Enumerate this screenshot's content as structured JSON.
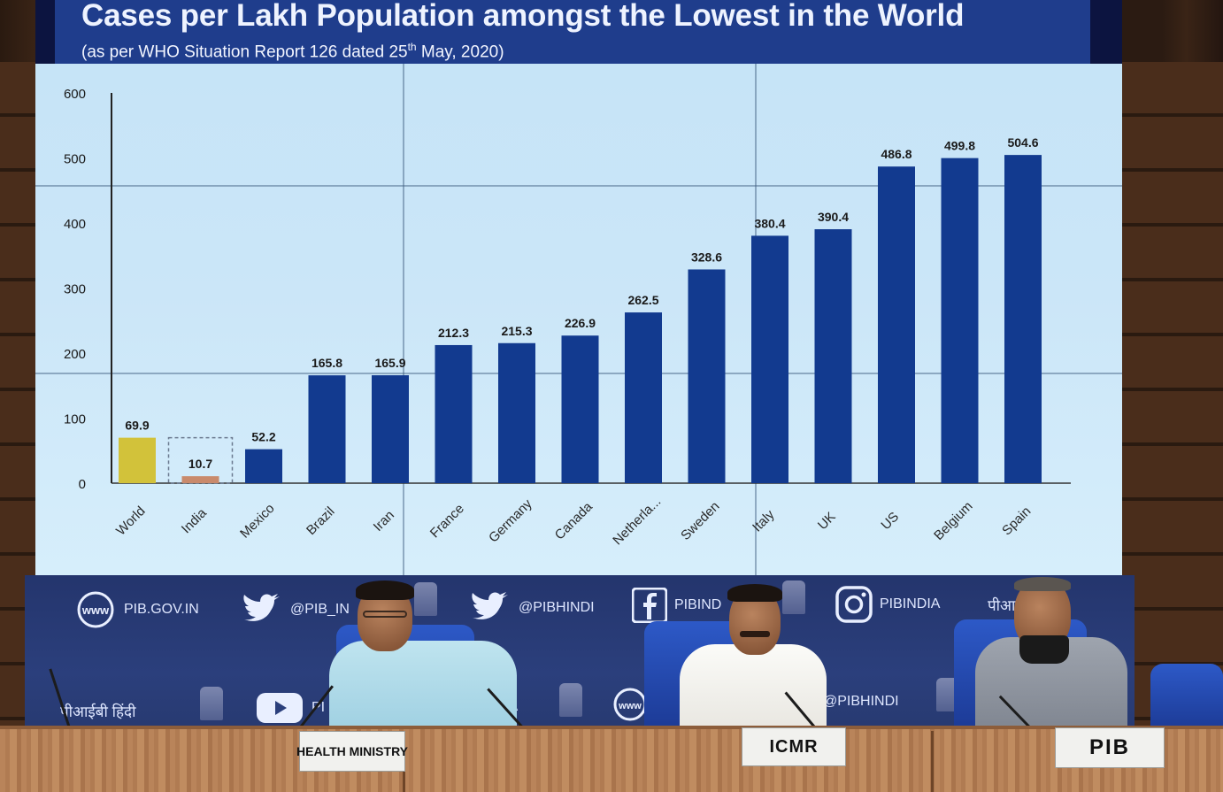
{
  "chart_data": {
    "type": "bar",
    "title": "Cases per Lakh Population amongst the Lowest in the World",
    "subtitle_prefix": "(as per WHO Situation Report 126 dated 25",
    "subtitle_sup": "th",
    "subtitle_suffix": " May, 2020)",
    "categories": [
      "World",
      "India",
      "Mexico",
      "Brazil",
      "Iran",
      "France",
      "Germany",
      "Canada",
      "Netherla...",
      "Sweden",
      "Italy",
      "UK",
      "US",
      "Belgium",
      "Spain"
    ],
    "values": [
      69.9,
      10.7,
      52.2,
      165.8,
      165.9,
      212.3,
      215.3,
      226.9,
      262.5,
      328.6,
      380.4,
      390.4,
      486.8,
      499.8,
      504.6
    ],
    "value_labels": [
      "69.9",
      "10.7",
      "52.2",
      "165.8",
      "165.9",
      "212.3",
      "215.3",
      "226.9",
      "262.5",
      "328.6",
      "380.4",
      "390.4",
      "486.8",
      "499.8",
      "504.6"
    ],
    "bar_colors": [
      "#d2c23a",
      "#c98a6c",
      "#123a8f",
      "#123a8f",
      "#123a8f",
      "#123a8f",
      "#123a8f",
      "#123a8f",
      "#123a8f",
      "#123a8f",
      "#123a8f",
      "#123a8f",
      "#123a8f",
      "#123a8f",
      "#123a8f"
    ],
    "yticks": [
      0,
      100,
      200,
      300,
      400,
      500,
      600
    ],
    "ylim": [
      0,
      600
    ],
    "xlabel": "",
    "ylabel": "",
    "grid": false,
    "highlight_box_category": "India"
  },
  "backdrop": {
    "website": "PIB.GOV.IN",
    "twitter_1": "@PIB_IN",
    "twitter_2": "@PIBHINDI",
    "facebook": "PIBIND",
    "instagram": "PIBINDIA",
    "hindi_1": "पीआईबी हिंदी",
    "hindi_2": "पीआईबी हिंदी",
    "youtube": "PI",
    "partial_a": "IA",
    "handle_lower": "@PIBHINDI",
    "www_label": "www",
    "colors": {
      "banner": "#2b3f7c",
      "text": "#dfe7ff"
    }
  },
  "nameplates": {
    "left": "HEALTH MINISTRY",
    "center": "ICMR",
    "right": "PIB"
  },
  "icons": {
    "www": "globe-icon",
    "twitter": "twitter-bird-icon",
    "facebook": "facebook-f-icon",
    "instagram": "instagram-camera-icon",
    "youtube": "youtube-play-icon",
    "emblem": "national-emblem-icon"
  }
}
